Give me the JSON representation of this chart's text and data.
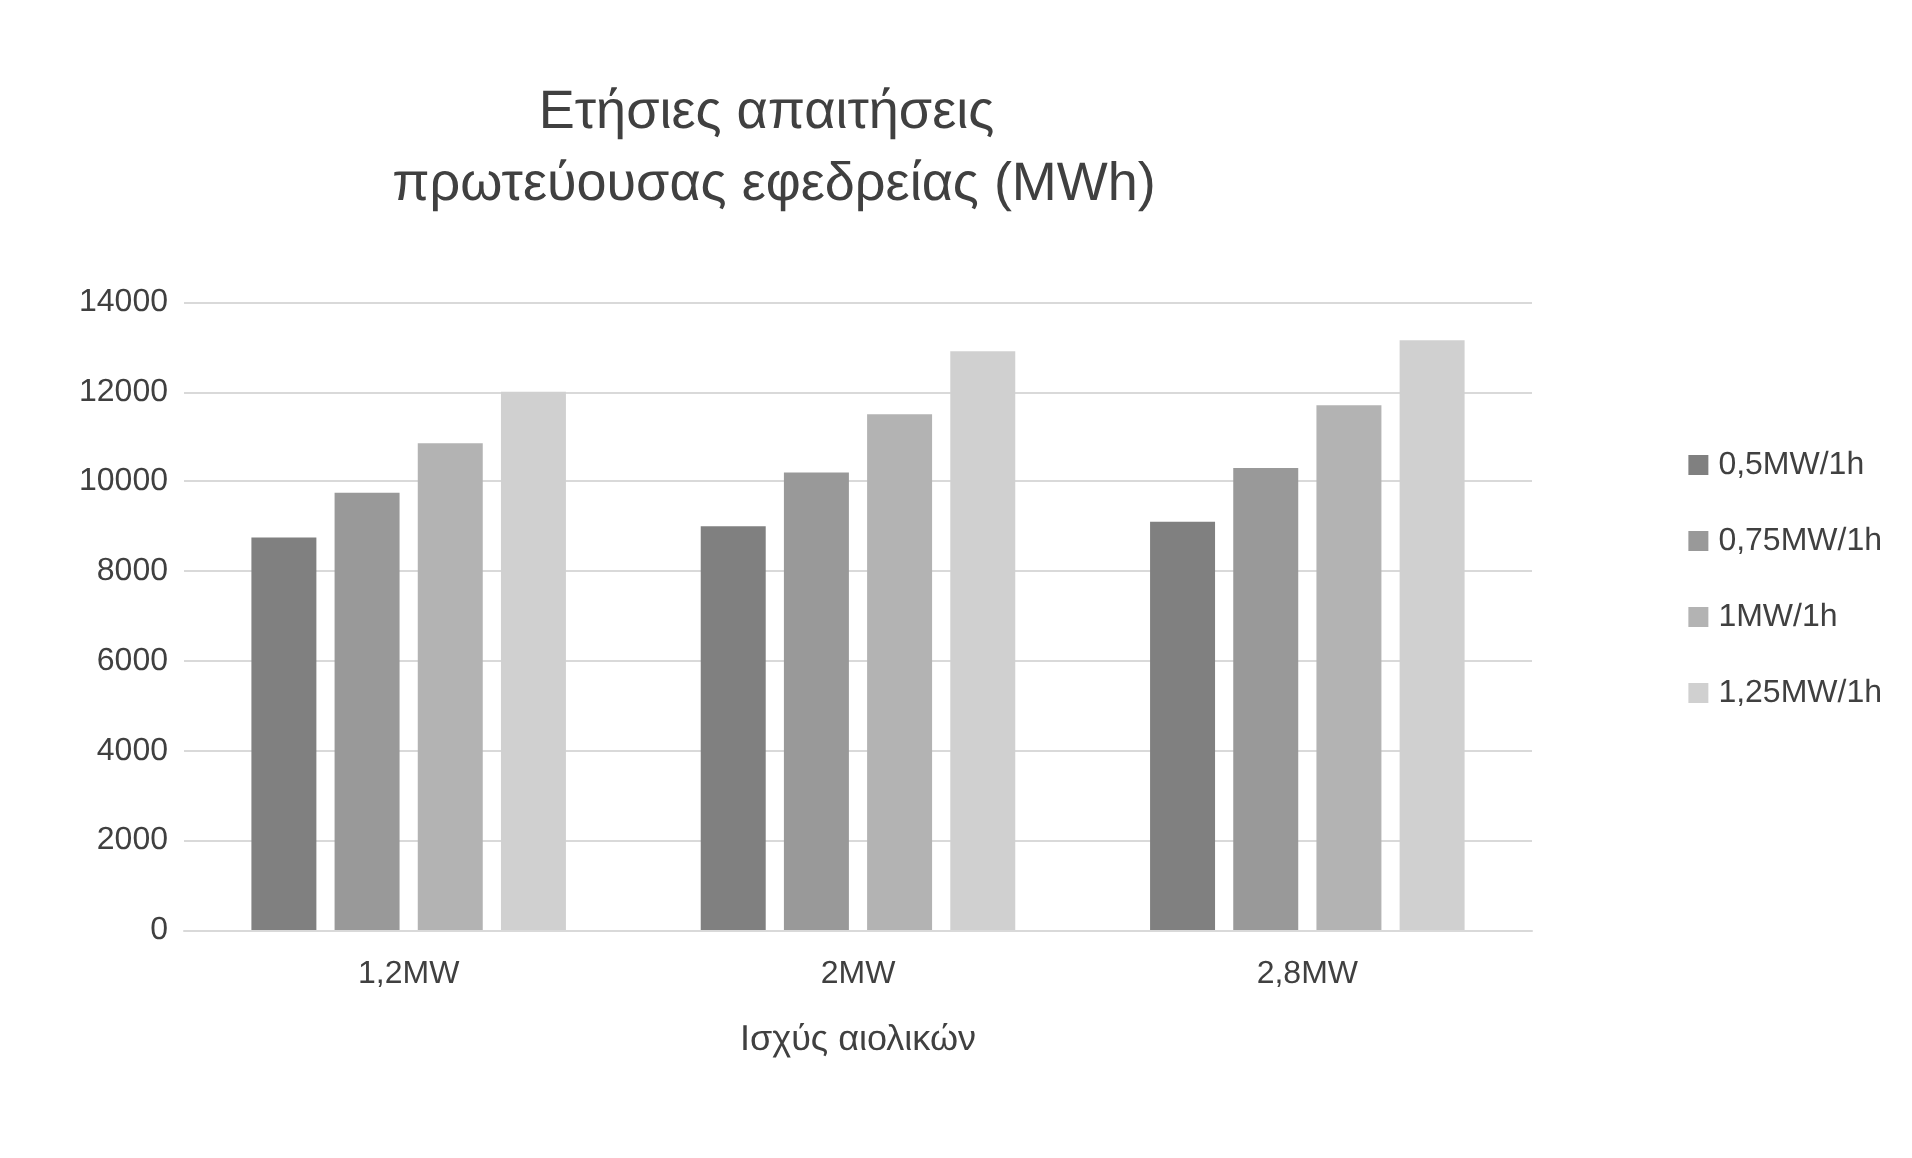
{
  "chart_data": {
    "type": "bar",
    "title": "Ετήσιες απαιτήσεις πρωτεύουσας εφεδρείας (MWh)",
    "xlabel": "Ισχύς αιολικών",
    "categories": [
      "1,2MW",
      "2MW",
      "2,8MW"
    ],
    "series": [
      {
        "name": "0,5MW/1h",
        "color": "#808080",
        "values": [
          8750,
          9000,
          9100
        ]
      },
      {
        "name": "0,75MW/1h",
        "color": "#999999",
        "values": [
          9750,
          10200,
          10300
        ]
      },
      {
        "name": "1MW/1h",
        "color": "#b3b3b3",
        "values": [
          10850,
          11500,
          11700
        ]
      },
      {
        "name": "1,25MW/1h",
        "color": "#d0d0d0",
        "values": [
          12000,
          12900,
          13150
        ]
      }
    ],
    "ylim": [
      0,
      14000
    ],
    "yticks": [
      0,
      2000,
      4000,
      6000,
      8000,
      10000,
      12000,
      14000
    ],
    "grid": "y",
    "legend": "right"
  }
}
